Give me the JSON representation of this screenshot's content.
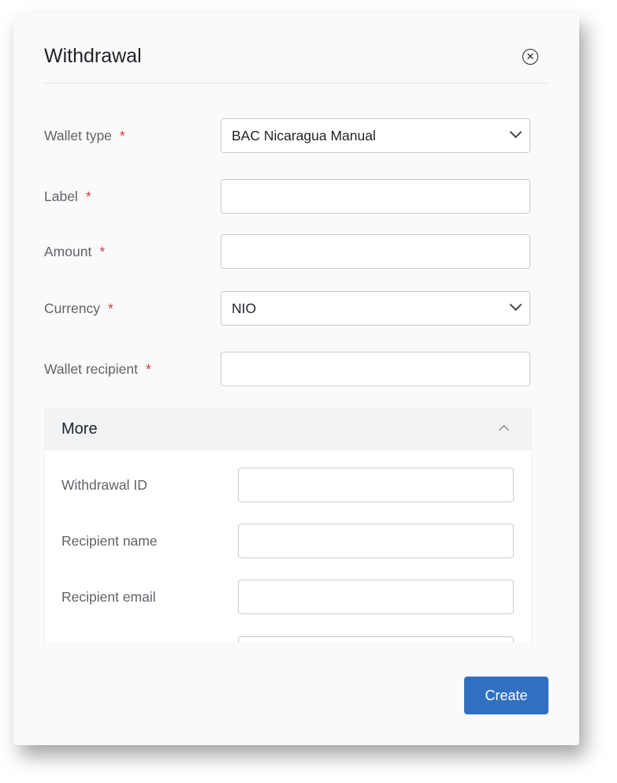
{
  "dialog": {
    "title": "Withdrawal",
    "close_icon": "close-circle-icon"
  },
  "fields": [
    {
      "label": "Wallet type",
      "required": "*",
      "value": "BAC Nicaragua Manual",
      "type": "select"
    },
    {
      "label": "Label",
      "required": "*",
      "value": "",
      "type": "text"
    },
    {
      "label": "Amount",
      "required": "*",
      "value": "",
      "type": "text"
    },
    {
      "label": "Currency",
      "required": "*",
      "value": "NIO",
      "type": "select"
    },
    {
      "label": "Wallet recipient",
      "required": "*",
      "value": "",
      "type": "text"
    }
  ],
  "more": {
    "title": "More",
    "expanded": true,
    "fields": [
      {
        "label": "Withdrawal ID",
        "value": ""
      },
      {
        "label": "Recipient name",
        "value": ""
      },
      {
        "label": "Recipient email",
        "value": ""
      }
    ]
  },
  "footer": {
    "create_label": "Create"
  },
  "colors": {
    "primary": "#3070c0",
    "required": "#d93636"
  }
}
